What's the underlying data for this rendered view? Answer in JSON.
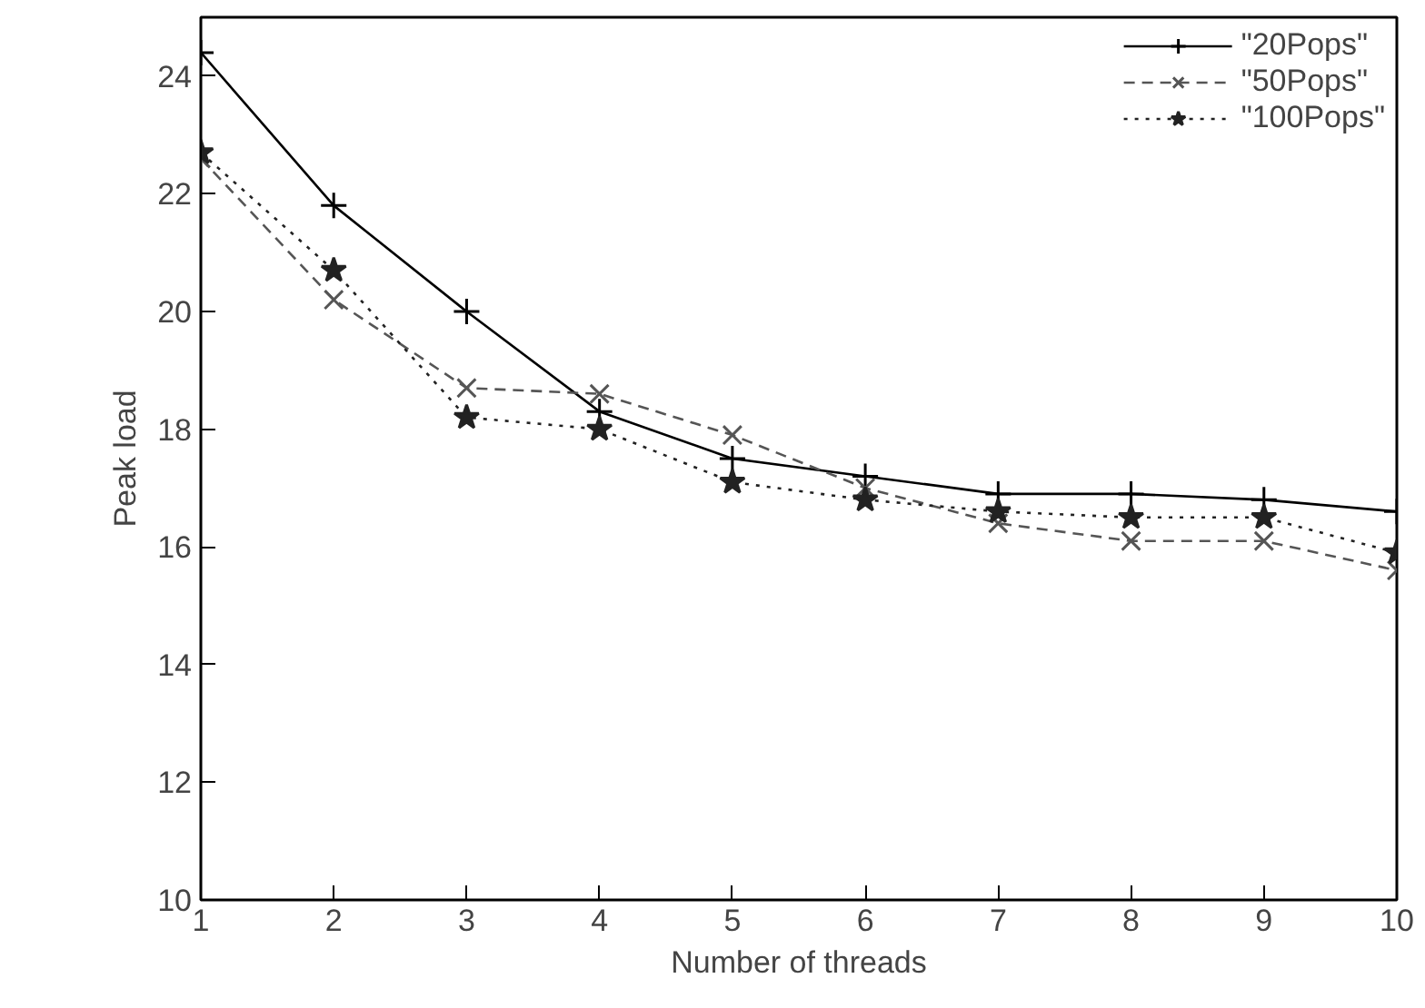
{
  "chart_data": {
    "type": "line",
    "xlabel": "Number of threads",
    "ylabel": "Peak load",
    "x": [
      1,
      2,
      3,
      4,
      5,
      6,
      7,
      8,
      9,
      10
    ],
    "xlim": [
      1,
      10
    ],
    "xticks": [
      1,
      2,
      3,
      4,
      5,
      6,
      7,
      8,
      9,
      10
    ],
    "ylim": [
      10,
      25
    ],
    "yticks": [
      10,
      12,
      14,
      16,
      18,
      20,
      22,
      24
    ],
    "grid": false,
    "legend": "top right",
    "series": [
      {
        "name": "\"20Pops\"",
        "color": "#000000",
        "marker": "cross",
        "line_style": "solid",
        "values": [
          24.4,
          21.8,
          20.0,
          18.3,
          17.5,
          17.2,
          16.9,
          16.9,
          16.8,
          16.6
        ]
      },
      {
        "name": "\"50Pops\"",
        "color": "#555555",
        "marker": "x",
        "line_style": "dashed",
        "values": [
          22.6,
          20.2,
          18.7,
          18.6,
          17.9,
          17.0,
          16.4,
          16.1,
          16.1,
          15.6
        ]
      },
      {
        "name": "\"100Pops\"",
        "color": "#222222",
        "marker": "star",
        "line_style": "dotted",
        "values": [
          22.7,
          20.7,
          18.2,
          18.0,
          17.1,
          16.8,
          16.6,
          16.5,
          16.5,
          15.9
        ]
      }
    ]
  }
}
